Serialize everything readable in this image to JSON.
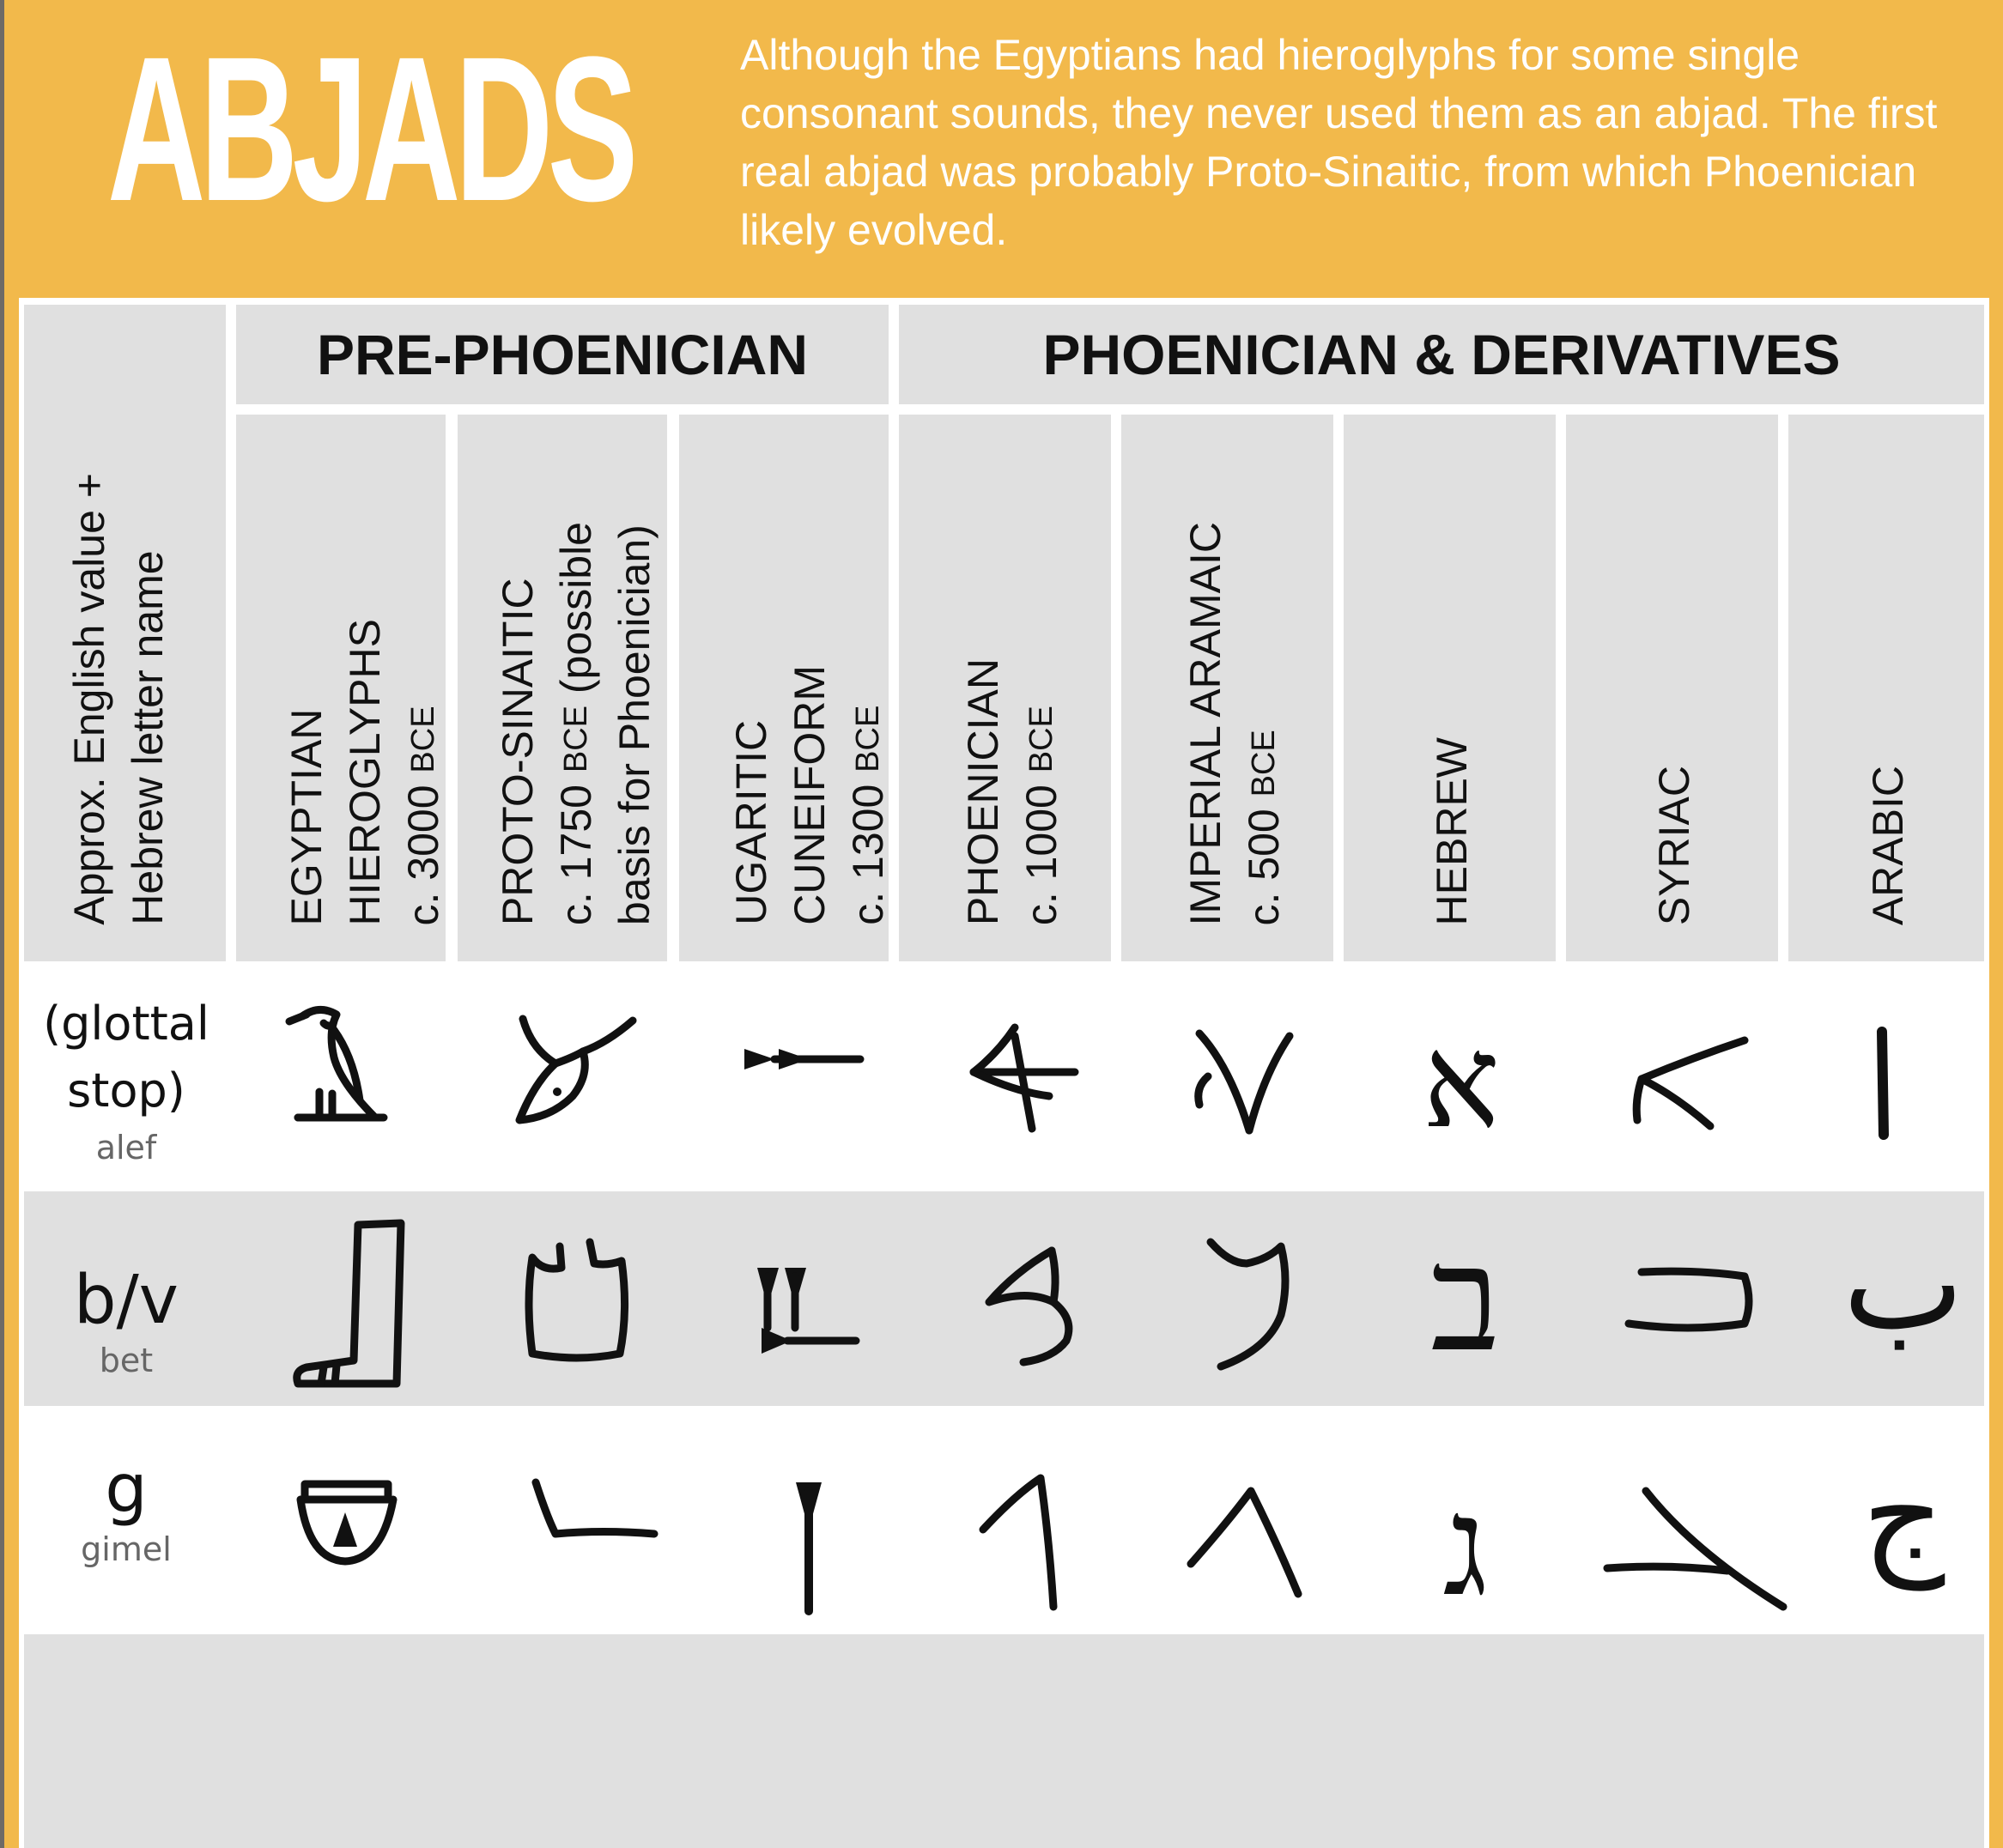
{
  "header": {
    "title": "ABJADS",
    "intro": "Although the Egyptians had hieroglyphs for some single consonant sounds, they never used them as an abjad. The first real abjad was probably Proto-Sinaitic, from which Phoenician likely evolved."
  },
  "table": {
    "row_header_label": "Approx. English value +\nHebrew letter name",
    "groups": [
      {
        "label": "PRE-PHOENICIAN"
      },
      {
        "label": "PHOENICIAN & DERIVATIVES"
      }
    ],
    "columns": [
      {
        "name": "EGYPTIAN\nHIEROGLYPHS",
        "date_prefix": "c. 3000",
        "era": "BCE",
        "note": ""
      },
      {
        "name": "PROTO-SINAITIC",
        "date_prefix": "c. 1750",
        "era": "BCE",
        "note": " (possible\nbasis for Phoenician)"
      },
      {
        "name": "UGARITIC\nCUNEIFORM",
        "date_prefix": "c. 1300",
        "era": "BCE",
        "note": ""
      },
      {
        "name": "PHOENICIAN",
        "date_prefix": "c. 1000",
        "era": "BCE",
        "note": ""
      },
      {
        "name": "IMPERIAL ARAMAIC",
        "date_prefix": "c. 500",
        "era": "BCE",
        "note": ""
      },
      {
        "name": "HEBREW",
        "date_prefix": "",
        "era": "",
        "note": ""
      },
      {
        "name": "SYRIAC",
        "date_prefix": "",
        "era": "",
        "note": ""
      },
      {
        "name": "ARABIC",
        "date_prefix": "",
        "era": "",
        "note": ""
      }
    ],
    "rows": [
      {
        "value": "(glottal\nstop)",
        "letter_name": "alef",
        "glyphs": [
          "vulture-hieroglyph-icon",
          "ox-head-glyph-icon",
          "ugaritic-alef-icon",
          "phoenician-alef-icon",
          "aramaic-alef-icon",
          "hebrew-alef-icon",
          "syriac-alef-icon",
          "arabic-alef-icon"
        ],
        "hebrew_char": "א",
        "arabic_char": "ا"
      },
      {
        "value": "b/v",
        "letter_name": "bet",
        "glyphs": [
          "leg-hieroglyph-icon",
          "house-glyph-icon",
          "ugaritic-bet-icon",
          "phoenician-bet-icon",
          "aramaic-bet-icon",
          "hebrew-bet-icon",
          "syriac-bet-icon",
          "arabic-ba-icon"
        ],
        "hebrew_char": "ב",
        "arabic_char": "ب"
      },
      {
        "value": "g",
        "letter_name": "gimel",
        "glyphs": [
          "basket-hieroglyph-icon",
          "throwstick-glyph-icon",
          "ugaritic-gimel-icon",
          "phoenician-gimel-icon",
          "aramaic-gimel-icon",
          "hebrew-gimel-icon",
          "syriac-gimel-icon",
          "arabic-jim-icon"
        ],
        "hebrew_char": "ג",
        "arabic_char": "ج"
      }
    ]
  },
  "colors": {
    "background_orange": "#f2b94b",
    "header_gray": "#e0e0e0",
    "panel_white": "#ffffff",
    "text_dark": "#111111",
    "letter_name_gray": "#666666"
  }
}
